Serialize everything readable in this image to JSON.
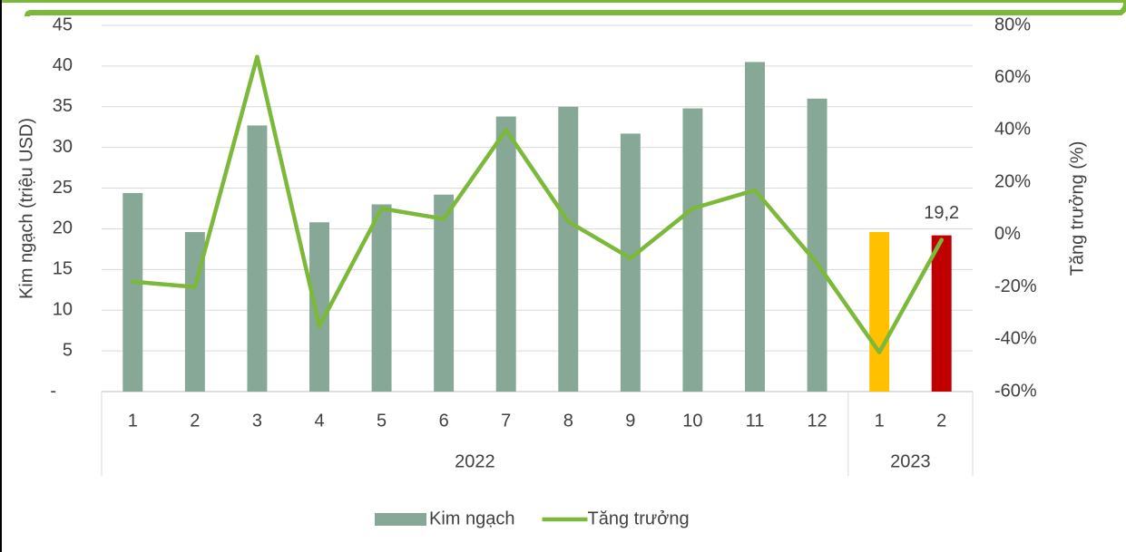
{
  "chart_data": {
    "type": "bar_line",
    "categories": [
      "1",
      "2",
      "3",
      "4",
      "5",
      "6",
      "7",
      "8",
      "9",
      "10",
      "11",
      "12",
      "1",
      "2"
    ],
    "category_groups": [
      {
        "label": "2022",
        "count": 12
      },
      {
        "label": "2023",
        "count": 2
      }
    ],
    "ylabel": "Kim ngạch (triệu USD)",
    "y2label": "Tăng trưởng (%)",
    "ylim": [
      0,
      45
    ],
    "yticks": [
      {
        "value": 0,
        "label": "-"
      },
      5,
      10,
      15,
      20,
      25,
      30,
      35,
      40,
      45
    ],
    "y2lim": [
      -60,
      80
    ],
    "y2ticks": [
      {
        "value": -60,
        "label": "-60%"
      },
      {
        "value": -40,
        "label": "-40%"
      },
      {
        "value": -20,
        "label": "-20%"
      },
      {
        "value": 0,
        "label": "0%"
      },
      {
        "value": 20,
        "label": "20%"
      },
      {
        "value": 40,
        "label": "40%"
      },
      {
        "value": 60,
        "label": "60%"
      },
      {
        "value": 80,
        "label": "80%"
      }
    ],
    "grid": true,
    "legend": "bottom",
    "series": [
      {
        "name": "Kim ngạch",
        "type": "bar",
        "color": "#87a896",
        "colors": [
          "#87a896",
          "#87a896",
          "#87a896",
          "#87a896",
          "#87a896",
          "#87a896",
          "#87a896",
          "#87a896",
          "#87a896",
          "#87a896",
          "#87a896",
          "#87a896",
          "#ffc000",
          "#c00000"
        ],
        "values": [
          24.4,
          19.6,
          32.7,
          20.8,
          23.0,
          24.2,
          33.8,
          35.0,
          31.7,
          34.8,
          40.5,
          36.0,
          19.6,
          19.2
        ],
        "value_labels": [
          null,
          null,
          null,
          null,
          null,
          null,
          null,
          null,
          null,
          null,
          null,
          null,
          null,
          "19,2"
        ]
      },
      {
        "name": "Tăng trưởng",
        "type": "line",
        "axis": "y2",
        "color": "#7cb83a",
        "values": [
          -18,
          -20,
          68,
          -35,
          10,
          6,
          40,
          5,
          -9,
          10,
          17,
          -11,
          -45,
          -2
        ]
      }
    ]
  }
}
